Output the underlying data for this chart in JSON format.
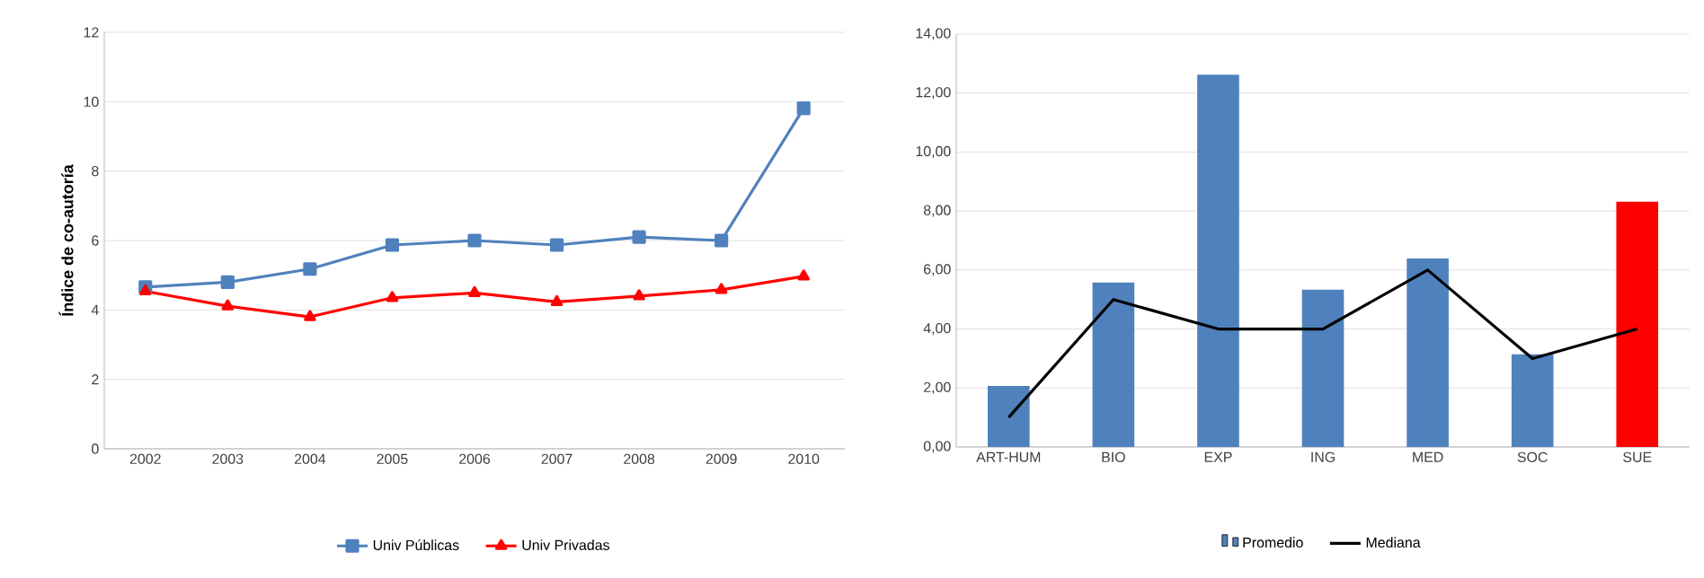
{
  "chart_data": [
    {
      "type": "line",
      "ylabel": "Índice de co-autoría",
      "categories": [
        "2002",
        "2003",
        "2004",
        "2005",
        "2006",
        "2007",
        "2008",
        "2009",
        "2010"
      ],
      "series": [
        {
          "name": "Univ Públicas",
          "color": "#4f81bd",
          "marker": "square",
          "values": [
            4.66,
            4.8,
            5.18,
            5.87,
            6.0,
            5.87,
            6.1,
            6.0,
            9.81
          ]
        },
        {
          "name": "Univ Privadas",
          "color": "#ff0000",
          "marker": "triangle",
          "values": [
            4.54,
            4.11,
            3.8,
            4.35,
            4.49,
            4.23,
            4.4,
            4.58,
            4.97
          ]
        }
      ],
      "ylim": [
        0,
        12
      ],
      "yticks": [
        0,
        2,
        4,
        6,
        8,
        10,
        12
      ],
      "grid": "y",
      "legend": "bottom",
      "line_style": "solid"
    },
    {
      "type": "bar",
      "categories": [
        "ART-HUM",
        "BIO",
        "EXP",
        "ING",
        "MED",
        "SOC",
        "SUE"
      ],
      "series": [
        {
          "name": "Promedio",
          "type": "bar",
          "color": "#4f81bd",
          "colors": [
            "#4f81bd",
            "#4f81bd",
            "#4f81bd",
            "#4f81bd",
            "#4f81bd",
            "#4f81bd",
            "#ff0000"
          ],
          "values": [
            2.07,
            5.58,
            12.62,
            5.33,
            6.39,
            3.14,
            8.32
          ]
        },
        {
          "name": "Mediana",
          "type": "line",
          "color": "#000000",
          "marker": "none",
          "values": [
            1,
            5,
            4,
            4,
            6,
            3,
            4
          ]
        }
      ],
      "ylim": [
        0,
        14
      ],
      "yticks": [
        {
          "value": 0,
          "label": "0,00"
        },
        {
          "value": 2,
          "label": "2,00"
        },
        {
          "value": 4,
          "label": "4,00"
        },
        {
          "value": 6,
          "label": "6,00"
        },
        {
          "value": 8,
          "label": "8,00"
        },
        {
          "value": 10,
          "label": "10,00"
        },
        {
          "value": 12,
          "label": "12,00"
        },
        {
          "value": 14,
          "label": "14,00"
        }
      ],
      "grid": "y",
      "legend": "bottom"
    }
  ]
}
